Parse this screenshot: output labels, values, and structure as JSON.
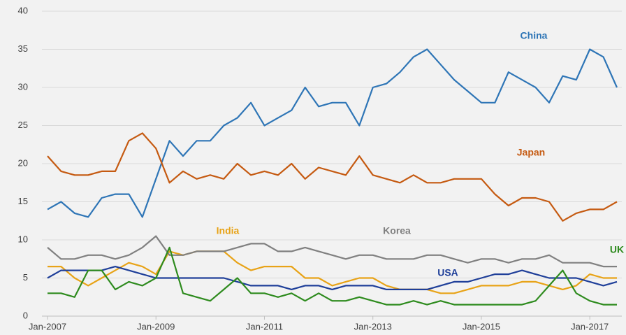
{
  "chart_data": {
    "type": "line",
    "categories": [
      "Jan-2007",
      null,
      null,
      null,
      null,
      null,
      null,
      null,
      "Jan-2009",
      null,
      null,
      null,
      null,
      null,
      null,
      null,
      "Jan-2011",
      null,
      null,
      null,
      null,
      null,
      null,
      null,
      "Jan-2013",
      null,
      null,
      null,
      null,
      null,
      null,
      null,
      "Jan-2015",
      null,
      null,
      null,
      null,
      null,
      null,
      null,
      "Jan-2017",
      null,
      null
    ],
    "ylim": [
      0,
      40
    ],
    "yticks": [
      0,
      5,
      10,
      15,
      20,
      25,
      30,
      35,
      40
    ],
    "grid": true,
    "series": [
      {
        "name": "China",
        "color": "#2e75b6",
        "values": [
          14,
          15,
          13.5,
          13,
          15.5,
          16,
          16,
          13,
          18,
          23,
          21,
          23,
          23,
          25,
          26,
          28,
          25,
          26,
          27,
          30,
          27.5,
          28,
          28,
          25,
          30,
          30.5,
          32,
          34,
          35,
          33,
          31,
          29.5,
          28,
          28,
          32,
          31,
          30,
          28,
          31.5,
          31,
          35,
          34,
          30
        ]
      },
      {
        "name": "Japan",
        "color": "#c55a11",
        "values": [
          21,
          19,
          18.5,
          18.5,
          19,
          19,
          23,
          24,
          22,
          17.5,
          19,
          18,
          18.5,
          18,
          20,
          18.5,
          19,
          18.5,
          20,
          18,
          19.5,
          19,
          18.5,
          21,
          18.5,
          18,
          17.5,
          18.5,
          17.5,
          17.5,
          18,
          18,
          18,
          16,
          14.5,
          15.5,
          15.5,
          15,
          12.5,
          13.5,
          14,
          14,
          15
        ]
      },
      {
        "name": "India",
        "color": "#e8a317",
        "values": [
          6.5,
          6.5,
          5,
          4,
          5,
          6,
          7,
          6.5,
          5.5,
          8.5,
          8,
          8.5,
          8.5,
          8.5,
          7,
          6,
          6.5,
          6.5,
          6.5,
          5,
          5,
          4,
          4.5,
          5,
          5,
          4,
          3.5,
          3.5,
          3.5,
          3,
          3,
          3.5,
          4,
          4,
          4,
          4.5,
          4.5,
          4,
          3.5,
          4,
          5.5,
          5,
          5
        ]
      },
      {
        "name": "Korea",
        "color": "#808080",
        "values": [
          9,
          7.5,
          7.5,
          8,
          8,
          7.5,
          8,
          9,
          10.5,
          8,
          8,
          8.5,
          8.5,
          8.5,
          9,
          9.5,
          9.5,
          8.5,
          8.5,
          9,
          8.5,
          8,
          7.5,
          8,
          8,
          7.5,
          7.5,
          7.5,
          8,
          8,
          7.5,
          7,
          7.5,
          7.5,
          7,
          7.5,
          7.5,
          8,
          7,
          7,
          7,
          6.5,
          6.5
        ]
      },
      {
        "name": "USA",
        "color": "#1f3f99",
        "values": [
          5,
          6,
          6,
          6,
          6,
          6.5,
          6,
          5.5,
          5,
          5,
          5,
          5,
          5,
          5,
          4.5,
          4,
          4,
          4,
          3.5,
          4,
          4,
          3.5,
          4,
          4,
          4,
          3.5,
          3.5,
          3.5,
          3.5,
          4,
          4.5,
          4.5,
          5,
          5.5,
          5.5,
          6,
          5.5,
          5,
          5,
          5,
          4.5,
          4,
          4.5
        ]
      },
      {
        "name": "UK",
        "color": "#2e8b1e",
        "values": [
          3,
          3,
          2.5,
          6,
          6,
          3.5,
          4.5,
          4,
          5,
          9,
          3,
          2.5,
          2,
          3.5,
          5,
          3,
          3,
          2.5,
          3,
          2,
          3,
          2,
          2,
          2.5,
          2,
          1.5,
          1.5,
          2,
          1.5,
          2,
          1.5,
          1.5,
          1.5,
          1.5,
          1.5,
          1.5,
          2,
          4,
          6,
          3,
          2,
          1.5,
          1.5
        ]
      }
    ]
  }
}
